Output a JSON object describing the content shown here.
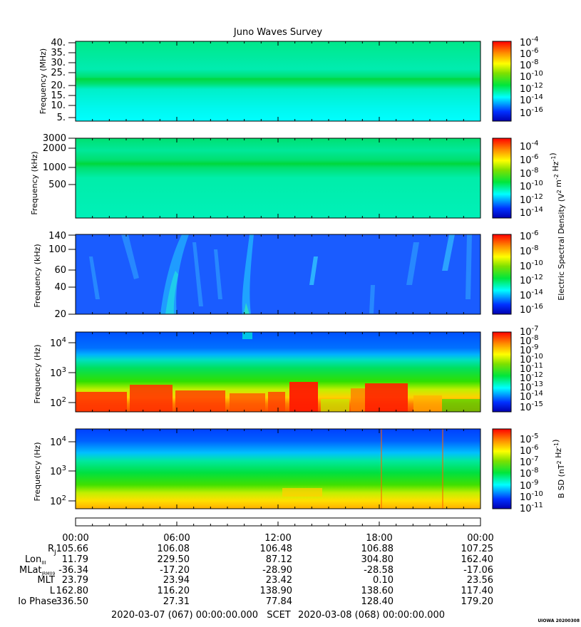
{
  "title": "Juno Waves Survey",
  "chart_data": [
    {
      "type": "heatmap",
      "panel": "electric-hf-mhz",
      "ylabel": "Frequency (MHz)",
      "yticks": [
        "40.",
        "35.",
        "30.",
        "25.",
        "20.",
        "15.",
        "10.",
        "5."
      ],
      "ylim": [
        3,
        41
      ],
      "colorbar_ticks": [
        "10^-4",
        "10^-6",
        "10^-8",
        "10^-10",
        "10^-12",
        "10^-14",
        "10^-16"
      ],
      "features": [
        "uniform background ~10^-13",
        "bright band near 21 MHz ~10^-12"
      ]
    },
    {
      "type": "heatmap",
      "panel": "electric-hf-khz",
      "ylabel": "Frequency (kHz)",
      "yticks": [
        "3000",
        "2000",
        "1000",
        "500"
      ],
      "yscale": "log",
      "colorbar_ticks": [
        "10^-4",
        "10^-6",
        "10^-8",
        "10^-10",
        "10^-12",
        "10^-14"
      ],
      "colorbar_label": "Electric Spectral Density (V^2 m^-2 Hz^-1)",
      "features": [
        "background ~10^-11",
        "band near 1100 kHz ~10^-10"
      ]
    },
    {
      "type": "heatmap",
      "panel": "electric-lf-khz",
      "ylabel": "Frequency (kHz)",
      "yticks": [
        "140",
        "100",
        "60",
        "40",
        "20"
      ],
      "yscale": "log",
      "colorbar_ticks": [
        "10^-6",
        "10^-8",
        "10^-10",
        "10^-12",
        "10^-14",
        "10^-16"
      ],
      "features": [
        "background ~10^-14",
        "scattered emissions ~10^-13"
      ]
    },
    {
      "type": "heatmap",
      "panel": "electric-lf-hz",
      "ylabel": "Frequency (Hz)",
      "yticks": [
        "10^4",
        "10^3",
        "10^2"
      ],
      "yscale": "log",
      "colorbar_ticks": [
        "10^-7",
        "10^-8",
        "10^-9",
        "10^-10",
        "10^-11",
        "10^-12",
        "10^-13",
        "10^-14",
        "10^-15"
      ],
      "features": [
        "high frequencies ~10^-13",
        "mid frequencies ~10^-11",
        "intense low-frequency bursts ~10^-8"
      ]
    },
    {
      "type": "heatmap",
      "panel": "magnetic",
      "ylabel": "Frequency (Hz)",
      "yticks": [
        "10^4",
        "10^3",
        "10^2"
      ],
      "yscale": "log",
      "colorbar_ticks": [
        "10^-5",
        "10^-6",
        "10^-7",
        "10^-8",
        "10^-9",
        "10^-10",
        "10^-11"
      ],
      "colorbar_label": "B SD (nT^2 Hz^-1)",
      "features": [
        "high frequencies ~10^-10",
        "low frequencies ~10^-7"
      ]
    }
  ],
  "ephemeris": {
    "times": [
      "00:00",
      "06:00",
      "12:00",
      "18:00",
      "00:00"
    ],
    "rows": [
      {
        "label": "RJ",
        "values": [
          "105.66",
          "106.08",
          "106.48",
          "106.88",
          "107.25"
        ]
      },
      {
        "label": "LonIII",
        "values": [
          "11.79",
          "229.50",
          "87.12",
          "304.80",
          "162.40"
        ]
      },
      {
        "label": "MLatJRM09",
        "values": [
          "-36.34",
          "-17.20",
          "-28.90",
          "-28.58",
          "-17.06"
        ]
      },
      {
        "label": "MLT",
        "values": [
          "23.79",
          "23.94",
          "23.42",
          "0.10",
          "23.56"
        ]
      },
      {
        "label": "L",
        "values": [
          "162.80",
          "116.20",
          "138.90",
          "138.60",
          "117.40"
        ]
      },
      {
        "label": "Io Phase",
        "values": [
          "336.50",
          "27.31",
          "77.84",
          "128.40",
          "179.20"
        ]
      }
    ],
    "footer_start": "2020-03-07 (067) 00:00:00.000",
    "footer_scet": "SCET",
    "footer_end": "2020-03-08 (068) 00:00:00.000"
  },
  "stamp": "UIOWA 20200308"
}
